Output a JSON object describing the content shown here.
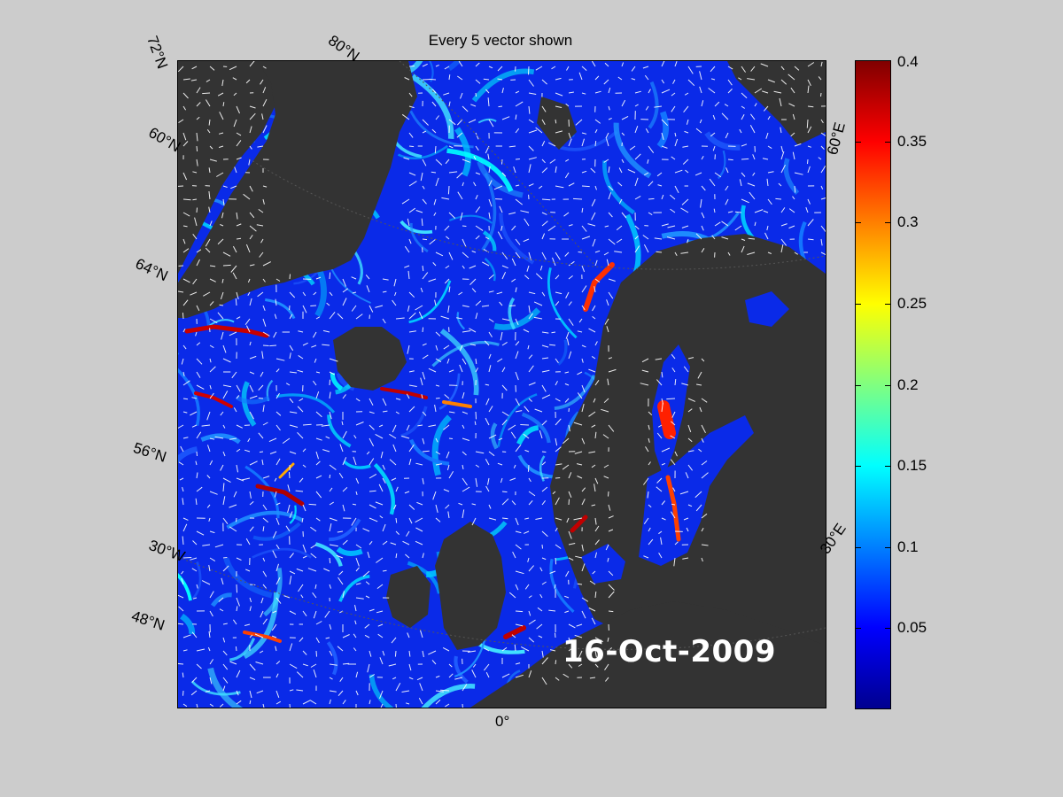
{
  "title": "Every 5 vector shown",
  "date_label": "16-Oct-2009",
  "lat_labels": [
    "72°N",
    "80°N",
    "60°N",
    "64°N",
    "56°N",
    "48°N"
  ],
  "lon_labels": [
    "30°W",
    "0°",
    "30°E",
    "60°E"
  ],
  "colorbar": {
    "min": 0,
    "max": 0.4,
    "ticks": [
      "0.4",
      "0.35",
      "0.3",
      "0.25",
      "0.2",
      "0.15",
      "0.1",
      "0.05"
    ],
    "tick_values": [
      0.4,
      0.35,
      0.3,
      0.25,
      0.2,
      0.15,
      0.1,
      0.05
    ],
    "colormap": "jet"
  },
  "colors": {
    "land": "#333333",
    "ocean_low": "#0a2cf0",
    "vector": "#ffffff",
    "background": "#cccccc"
  }
}
